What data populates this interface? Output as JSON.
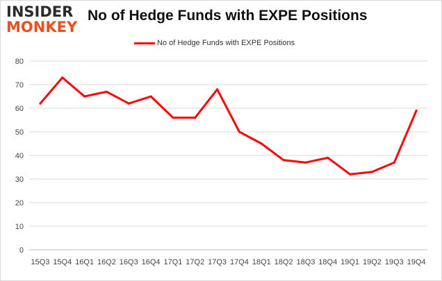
{
  "branding": {
    "logo_line1": "INSIDER",
    "logo_line2": "MONKEY",
    "logo_color_dark": "#2b2b2b",
    "logo_color_accent": "#e8511f"
  },
  "chart_data": {
    "type": "line",
    "title": "No of Hedge Funds with EXPE Positions",
    "xlabel": "",
    "ylabel": "",
    "categories": [
      "15Q3",
      "15Q4",
      "16Q1",
      "16Q2",
      "16Q3",
      "16Q4",
      "17Q1",
      "17Q2",
      "17Q3",
      "17Q4",
      "18Q1",
      "18Q2",
      "18Q3",
      "18Q4",
      "19Q1",
      "19Q2",
      "19Q3",
      "19Q4"
    ],
    "series": [
      {
        "name": "No of Hedge Funds with EXPE Positions",
        "color": "#ff0000",
        "values": [
          62,
          73,
          65,
          67,
          62,
          65,
          56,
          56,
          68,
          50,
          45,
          38,
          37,
          39,
          32,
          33,
          37,
          59
        ]
      }
    ],
    "ylim": [
      0,
      80
    ],
    "yticks": [
      0,
      10,
      20,
      30,
      40,
      50,
      60,
      70,
      80
    ],
    "grid": true,
    "legend_position": "top-center"
  }
}
